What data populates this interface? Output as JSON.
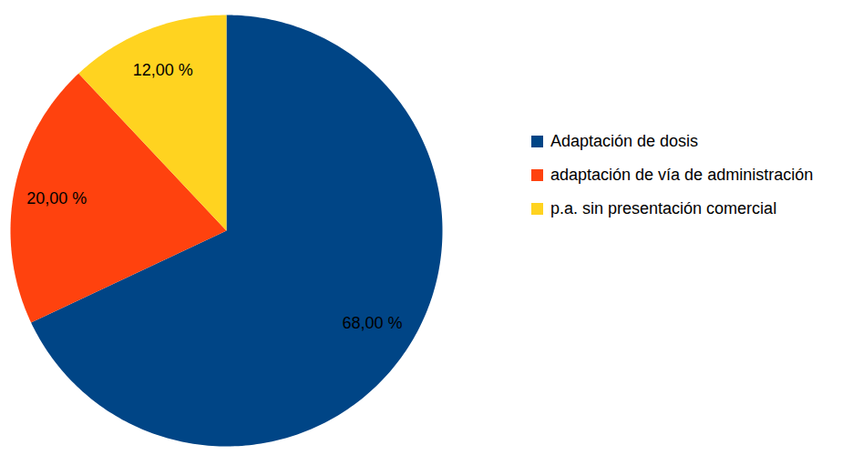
{
  "chart_data": {
    "type": "pie",
    "categories": [
      "Adaptación de dosis",
      "adaptación de vía de administración",
      "p.a. sin presentación comercial"
    ],
    "values": [
      68,
      20,
      12
    ],
    "value_labels": [
      "68,00 %",
      "20,00 %",
      "12,00 %"
    ],
    "colors": [
      "#004586",
      "#ff420e",
      "#ffd320"
    ],
    "data_labels": true,
    "legend": "right"
  }
}
